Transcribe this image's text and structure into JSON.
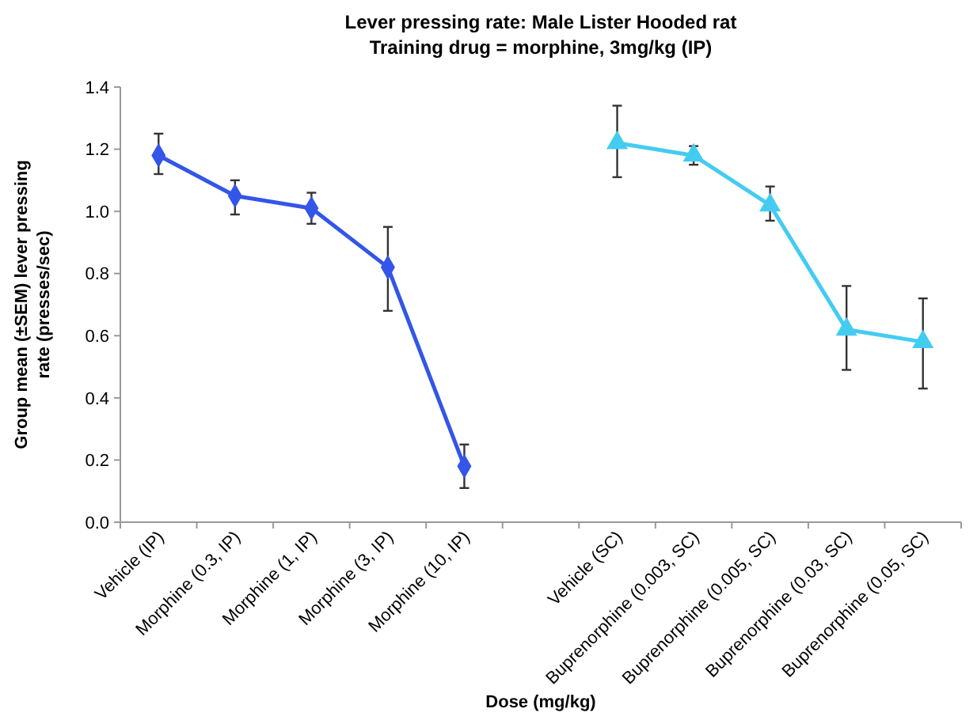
{
  "chart_data": {
    "type": "line",
    "title": "Lever pressing rate: Male Lister Hooded rat",
    "subtitle": "Training drug = morphine, 3mg/kg (IP)",
    "xlabel": "Dose (mg/kg)",
    "ylabel": "Group mean (±SEM) lever pressing rate (presses/sec)",
    "categories": [
      "Vehicle (IP)",
      "Morphine (0.3, IP)",
      "Morphine (1, IP)",
      "Morphine (3, IP)",
      "Morphine (10, IP)",
      null,
      "Vehicle (SC)",
      "Buprenorphine (0.003, SC)",
      "Buprenorphine (0.005, SC)",
      "Buprenorphine (0.03, SC)",
      "Buprenorphine (0.05, SC)"
    ],
    "series": [
      {
        "color": "#3355e8",
        "marker": "diamond",
        "values": [
          1.18,
          1.05,
          1.01,
          0.82,
          0.18,
          null,
          null,
          null,
          null,
          null,
          null
        ],
        "errors": [
          [
            1.12,
            1.25
          ],
          [
            0.99,
            1.1
          ],
          [
            0.96,
            1.06
          ],
          [
            0.68,
            0.95
          ],
          [
            0.11,
            0.25
          ],
          null,
          null,
          null,
          null,
          null,
          null
        ]
      },
      {
        "color": "#44ccf0",
        "marker": "triangle",
        "values": [
          null,
          null,
          null,
          null,
          null,
          null,
          1.22,
          1.18,
          1.02,
          0.62,
          0.58
        ],
        "errors": [
          null,
          null,
          null,
          null,
          null,
          null,
          [
            1.11,
            1.34
          ],
          [
            1.15,
            1.21
          ],
          [
            0.97,
            1.08
          ],
          [
            0.49,
            0.76
          ],
          [
            0.43,
            0.72
          ]
        ]
      }
    ],
    "ylim": [
      0,
      1.4
    ],
    "yticks": [
      {
        "value": 0,
        "label": "0.0"
      },
      {
        "value": 0.2,
        "label": "0.2"
      },
      {
        "value": 0.4,
        "label": "0.4"
      },
      {
        "value": 0.6,
        "label": "0.6"
      },
      {
        "value": 0.8,
        "label": "0.8"
      },
      {
        "value": 1,
        "label": "1.0"
      },
      {
        "value": 1.2,
        "label": "1.2"
      },
      {
        "value": 1.4,
        "label": "1.4"
      }
    ],
    "grid": false,
    "line_style": "solid"
  }
}
